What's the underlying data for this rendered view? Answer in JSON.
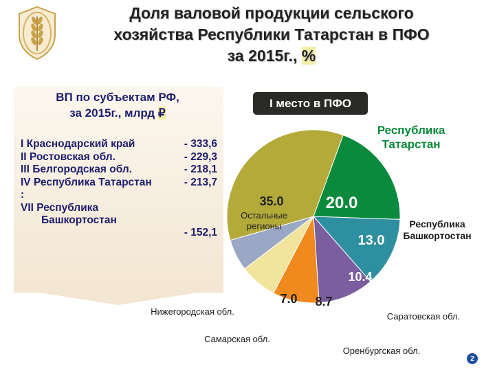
{
  "title": {
    "line1": "Доля валовой продукции сельского",
    "line2": "хозяйства Республики Татарстан в ПФО",
    "line3_text": "за 2015г., ",
    "line3_unit": "%"
  },
  "panel": {
    "subtitle_line1": "ВП по субъектам РФ,",
    "subtitle_line2_text": "за 2015г., млрд ",
    "subtitle_line2_unit": "₽",
    "ranking": [
      {
        "label": "I  Краснодарский край",
        "value": "- 333,6"
      },
      {
        "label": "II  Ростовская обл.",
        "value": "- 229,3"
      },
      {
        "label": "III Белгородская обл.",
        "value": "- 218,1"
      },
      {
        "label": "IV Республика Татарстан",
        "value": "- 213,7"
      },
      {
        "label": ":",
        "value": ""
      },
      {
        "label": "VII Республика",
        "value": ""
      },
      {
        "label": "Башкортостан",
        "value": "- 152,1"
      }
    ]
  },
  "badge": "I место в ПФО",
  "page_number": "2",
  "colors": {
    "tatarstan": "#0a8a3c",
    "bashkortostan": "#2e8fa0",
    "saratov": "#7a5ea0",
    "orenburg": "#f08a1e",
    "samara": "#f2e49c",
    "nizhny": "#9aa8c5",
    "others": "#b4aa3a",
    "badge_bg": "#2a2a26",
    "title_highlight": "#f2eda4"
  },
  "chart_data": {
    "type": "pie",
    "title": "",
    "start_angle_deg": 20,
    "slices": [
      {
        "name": "Республика Татарстан",
        "label_lines": [
          "Республика",
          "Татарстан"
        ],
        "value": 20.0,
        "value_label": "20.0",
        "color": "#0a8a3c"
      },
      {
        "name": "Республика Башкортостан",
        "label_lines": [
          "Республика",
          "Башкортостан"
        ],
        "value": 13.0,
        "value_label": "13.0",
        "color": "#2e8fa0"
      },
      {
        "name": "Саратовская обл.",
        "label_lines": [
          "Саратовская обл."
        ],
        "value": 10.4,
        "value_label": "10.4",
        "color": "#7a5ea0"
      },
      {
        "name": "Оренбургская обл.",
        "label_lines": [
          "Оренбургская обл."
        ],
        "value": 8.7,
        "value_label": "8.7",
        "color": "#f08a1e"
      },
      {
        "name": "Самарская обл.",
        "label_lines": [
          "Самарская обл."
        ],
        "value": 7.0,
        "value_label": "7.0",
        "color": "#f2e49c"
      },
      {
        "name": "Нижегородская обл.",
        "label_lines": [
          "Нижегородская обл."
        ],
        "value": 5.9,
        "value_label": "",
        "color": "#9aa8c5"
      },
      {
        "name": "Остальные регионы",
        "label_lines": [
          "Остальные",
          "регионы"
        ],
        "value": 35.0,
        "value_label": "35.0",
        "color": "#b4aa3a"
      }
    ]
  }
}
